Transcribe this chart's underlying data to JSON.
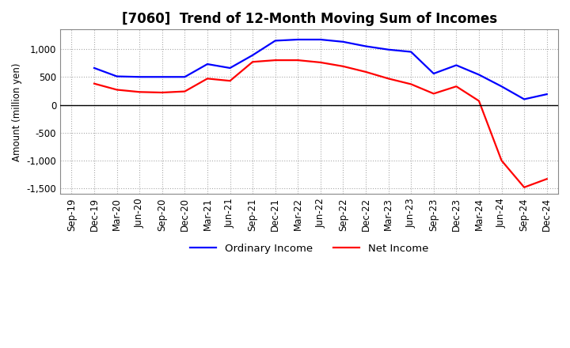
{
  "title": "[7060]  Trend of 12-Month Moving Sum of Incomes",
  "ylabel": "Amount (million yen)",
  "x_labels": [
    "Sep-19",
    "Dec-19",
    "Mar-20",
    "Jun-20",
    "Sep-20",
    "Dec-20",
    "Mar-21",
    "Jun-21",
    "Sep-21",
    "Dec-21",
    "Mar-22",
    "Jun-22",
    "Sep-22",
    "Dec-22",
    "Mar-23",
    "Jun-23",
    "Sep-23",
    "Dec-23",
    "Mar-24",
    "Jun-24",
    "Sep-24",
    "Dec-24"
  ],
  "ordinary_income": [
    null,
    660,
    510,
    500,
    500,
    500,
    730,
    660,
    890,
    1150,
    1170,
    1170,
    1130,
    1050,
    990,
    950,
    560,
    710,
    540,
    330,
    100,
    190
  ],
  "net_income": [
    null,
    380,
    270,
    230,
    220,
    240,
    470,
    430,
    770,
    800,
    800,
    760,
    690,
    590,
    470,
    370,
    200,
    330,
    70,
    -1000,
    -1480,
    -1330
  ],
  "ylim": [
    -1600,
    1350
  ],
  "yticks": [
    -1500,
    -1000,
    -500,
    0,
    500,
    1000
  ],
  "ordinary_color": "#0000ff",
  "net_color": "#ff0000",
  "background_color": "#ffffff",
  "grid_color": "#aaaaaa",
  "title_fontsize": 12,
  "label_fontsize": 8.5
}
